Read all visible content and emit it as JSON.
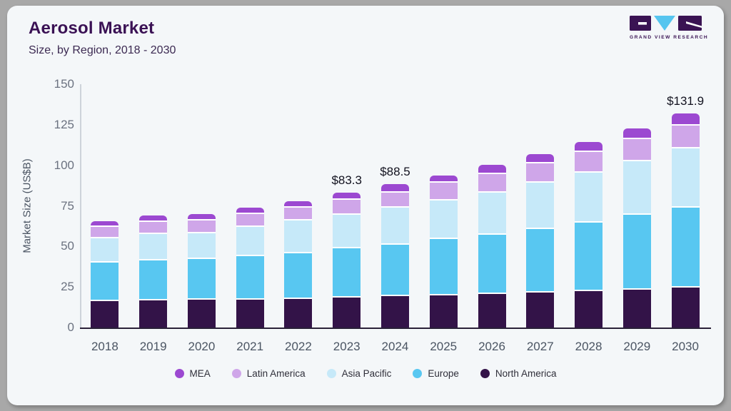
{
  "header": {
    "title": "Aerosol Market",
    "subtitle": "Size, by Region, 2018 - 2030"
  },
  "logo": {
    "text": "GRAND VIEW RESEARCH",
    "dark_color": "#3a1353",
    "accent_color": "#56c5ef"
  },
  "chart_data": {
    "type": "bar",
    "stacked": true,
    "title": "Aerosol Market Size, by Region, 2018 - 2030",
    "xlabel": "",
    "ylabel": "Market Size (US$B)",
    "ylim": [
      0,
      150
    ],
    "yticks": [
      0,
      25,
      50,
      75,
      100,
      125,
      150
    ],
    "grid": false,
    "legend_position": "bottom",
    "categories": [
      "2018",
      "2019",
      "2020",
      "2021",
      "2022",
      "2023",
      "2024",
      "2025",
      "2026",
      "2027",
      "2028",
      "2029",
      "2030"
    ],
    "series": [
      {
        "name": "North America",
        "color": "#331348",
        "values": [
          16.5,
          16.8,
          17.0,
          17.3,
          17.8,
          18.7,
          19.2,
          19.8,
          20.5,
          21.6,
          22.5,
          23.5,
          24.7
        ]
      },
      {
        "name": "Europe",
        "color": "#58c7f1",
        "values": [
          23.4,
          24.6,
          25.2,
          26.8,
          28.1,
          30.1,
          31.8,
          34.8,
          36.5,
          39.0,
          42.0,
          45.8,
          49.0
        ]
      },
      {
        "name": "Asia Pacific",
        "color": "#c6e9f9",
        "values": [
          15.2,
          16.1,
          16.0,
          18.0,
          20.0,
          20.5,
          23.0,
          23.5,
          26.1,
          28.6,
          30.8,
          33.0,
          36.7
        ]
      },
      {
        "name": "Latin America",
        "color": "#cfa6e9",
        "values": [
          7.0,
          7.4,
          7.8,
          7.8,
          8.0,
          9.3,
          9.3,
          11.0,
          11.5,
          11.9,
          12.8,
          14.0,
          14.0
        ]
      },
      {
        "name": "MEA",
        "color": "#9c49d1",
        "values": [
          3.6,
          4.0,
          4.1,
          3.9,
          4.1,
          4.7,
          5.2,
          4.4,
          5.5,
          6.0,
          6.4,
          6.5,
          7.5
        ]
      }
    ],
    "value_labels": {
      "2023": "$83.3",
      "2024": "$88.5",
      "2030": "$131.9"
    },
    "legend": [
      {
        "label": "MEA",
        "color": "#9c49d1"
      },
      {
        "label": "Latin America",
        "color": "#cfa6e9"
      },
      {
        "label": "Asia Pacific",
        "color": "#c6e9f9"
      },
      {
        "label": "Europe",
        "color": "#58c7f1"
      },
      {
        "label": "North America",
        "color": "#331348"
      }
    ]
  },
  "colors": {
    "card_background": "#f4f7f9",
    "page_background": "#a8a8a8",
    "title_text": "#3a1154",
    "axis_text": "#6b7280",
    "baseline": "#2a2138"
  }
}
